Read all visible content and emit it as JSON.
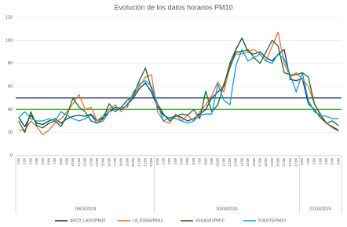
{
  "chart_data": {
    "type": "line",
    "title": "Evolución de los datos horarios PM10",
    "groups": [
      {
        "label": "19/03/2024",
        "categories": [
          "1:00",
          "2:00",
          "3:00",
          "4:00",
          "5:00",
          "6:00",
          "7:00",
          "8:00",
          "9:00",
          "10:00",
          "11:00",
          "12:00",
          "13:00",
          "14:00",
          "15:00",
          "16:00",
          "17:00",
          "18:00",
          "19:00",
          "20:00",
          "21:00",
          "22:00",
          "23:00"
        ]
      },
      {
        "label": "20/03/2024",
        "categories": [
          "0:00",
          "1:00",
          "2:00",
          "3:00",
          "4:00",
          "5:00",
          "6:00",
          "7:00",
          "8:00",
          "9:00",
          "10:00",
          "11:00",
          "12:00",
          "13:00",
          "14:00",
          "15:00",
          "16:00",
          "17:00",
          "18:00",
          "19:00",
          "20:00",
          "21:00",
          "22:00",
          "23:00"
        ]
      },
      {
        "label": "21/03/2024",
        "categories": [
          "0:00",
          "1:00",
          "2:00",
          "3:00",
          "4:00",
          "5:00",
          "6:00"
        ]
      }
    ],
    "series": [
      {
        "name": "ARCO_LADO/PM10",
        "color": "#0e3d5c",
        "values": [
          33,
          25,
          35,
          28,
          27,
          30,
          32,
          28,
          32,
          34,
          35,
          34,
          36,
          30,
          33,
          38,
          42,
          40,
          44,
          50,
          58,
          63,
          55,
          42,
          35,
          32,
          35,
          33,
          30,
          32,
          36,
          40,
          50,
          55,
          60,
          80,
          92,
          102,
          90,
          88,
          90,
          85,
          82,
          88,
          92,
          66,
          65,
          67,
          45,
          40,
          33,
          28,
          25,
          22
        ]
      },
      {
        "name": "LA_RUBIA/PM10",
        "color": "#e97132",
        "values": [
          22,
          22,
          30,
          25,
          18,
          22,
          28,
          32,
          38,
          45,
          53,
          40,
          42,
          30,
          35,
          40,
          44,
          38,
          45,
          52,
          60,
          68,
          70,
          38,
          30,
          28,
          36,
          30,
          35,
          30,
          38,
          44,
          52,
          64,
          55,
          78,
          88,
          88,
          90,
          92,
          88,
          82,
          95,
          107,
          80,
          68,
          72,
          66,
          60,
          45,
          35,
          28,
          24,
          21
        ]
      },
      {
        "name": "VEGASIC/PM10",
        "color": "#196b24",
        "values": [
          30,
          20,
          38,
          26,
          24,
          28,
          30,
          25,
          35,
          50,
          42,
          38,
          30,
          28,
          32,
          45,
          38,
          42,
          48,
          52,
          65,
          76,
          58,
          45,
          36,
          30,
          34,
          36,
          35,
          40,
          32,
          56,
          38,
          44,
          62,
          76,
          90,
          90,
          92,
          85,
          80,
          90,
          100,
          95,
          72,
          70,
          70,
          72,
          68,
          45,
          36,
          28,
          30,
          26
        ]
      },
      {
        "name": "PUENTE/PM10",
        "color": "#0f9ed5",
        "values": [
          33,
          38,
          32,
          30,
          30,
          32,
          30,
          38,
          35,
          32,
          30,
          32,
          35,
          28,
          30,
          38,
          40,
          42,
          42,
          55,
          62,
          65,
          60,
          45,
          30,
          33,
          32,
          30,
          28,
          30,
          35,
          36,
          36,
          62,
          48,
          44,
          78,
          92,
          82,
          85,
          88,
          82,
          80,
          88,
          84,
          70,
          55,
          72,
          48,
          38,
          35,
          34,
          32,
          32
        ]
      }
    ],
    "reference_lines": [
      {
        "value": 50,
        "color": "#1f3864"
      },
      {
        "value": 40,
        "color": "#4ea72e"
      }
    ],
    "ylim": [
      0,
      120
    ],
    "yticks": [
      0,
      20,
      40,
      60,
      80,
      100,
      120
    ],
    "grid": true
  }
}
